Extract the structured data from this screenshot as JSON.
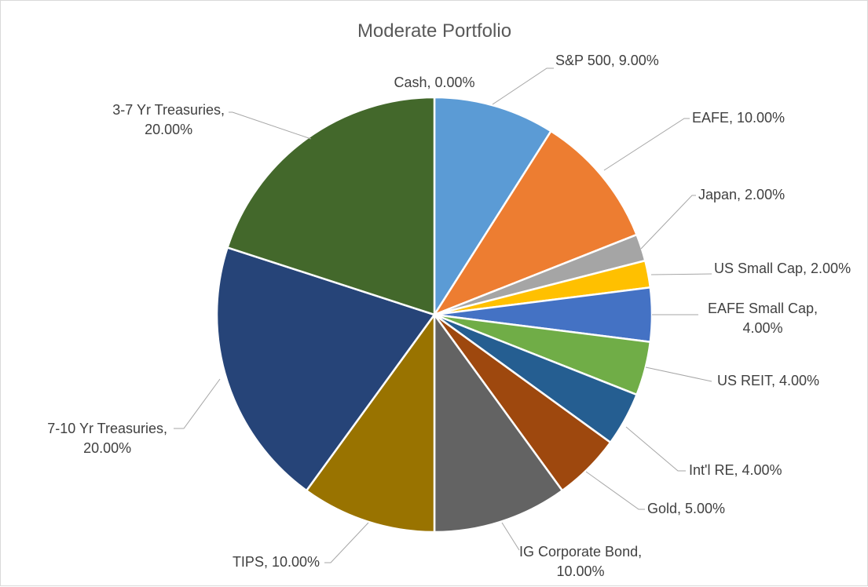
{
  "chart_data": {
    "type": "pie",
    "title": "Moderate Portfolio",
    "start_angle_deg": 0,
    "direction": "clockwise",
    "slices": [
      {
        "label": "Cash",
        "value": 0.0,
        "display": "Cash, 0.00%",
        "color": "#5b9bd5"
      },
      {
        "label": "S&P 500",
        "value": 9.0,
        "display": "S&P 500, 9.00%",
        "color": "#5b9bd5"
      },
      {
        "label": "EAFE",
        "value": 10.0,
        "display": "EAFE, 10.00%",
        "color": "#ed7d31"
      },
      {
        "label": "Japan",
        "value": 2.0,
        "display": "Japan, 2.00%",
        "color": "#a5a5a5"
      },
      {
        "label": "US Small Cap",
        "value": 2.0,
        "display": "US Small Cap, 2.00%",
        "color": "#ffc000"
      },
      {
        "label": "EAFE Small Cap",
        "value": 4.0,
        "display": [
          "EAFE Small Cap,",
          "4.00%"
        ],
        "color": "#4472c4"
      },
      {
        "label": "US REIT",
        "value": 4.0,
        "display": "US REIT, 4.00%",
        "color": "#70ad47"
      },
      {
        "label": "Int'l RE",
        "value": 4.0,
        "display": "Int'l RE, 4.00%",
        "color": "#255e91"
      },
      {
        "label": "Gold",
        "value": 5.0,
        "display": "Gold, 5.00%",
        "color": "#9e480e"
      },
      {
        "label": "IG Corporate Bond",
        "value": 10.0,
        "display": [
          "IG Corporate Bond,",
          "10.00%"
        ],
        "color": "#636363"
      },
      {
        "label": "TIPS",
        "value": 10.0,
        "display": "TIPS, 10.00%",
        "color": "#997300"
      },
      {
        "label": "7-10 Yr Treasuries",
        "value": 20.0,
        "display": [
          "7-10 Yr Treasuries,",
          "20.00%"
        ],
        "color": "#264478"
      },
      {
        "label": "3-7 Yr Treasuries",
        "value": 20.0,
        "display": [
          "3-7 Yr Treasuries,",
          "20.00%"
        ],
        "color": "#43682b"
      }
    ]
  }
}
